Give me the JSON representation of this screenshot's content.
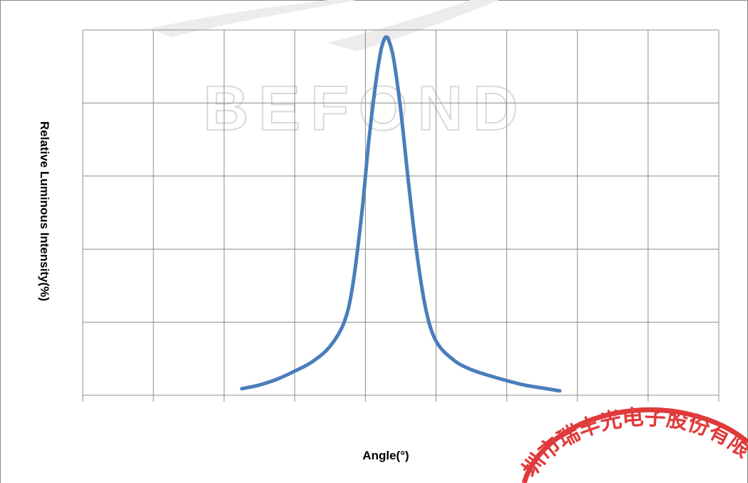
{
  "chart_data": {
    "type": "line",
    "title": "",
    "xlabel": "Angle(°)",
    "ylabel": "Relative Luminous Intensity(%)",
    "grid": true,
    "x_tick_labels": [],
    "y_tick_labels": [],
    "xlim": [
      0,
      9
    ],
    "ylim": [
      0,
      5
    ],
    "series": [
      {
        "color": "#4a7ebb",
        "points": [
          [
            2.25,
            0.09
          ],
          [
            2.5,
            0.14
          ],
          [
            2.75,
            0.22
          ],
          [
            3.0,
            0.33
          ],
          [
            3.25,
            0.46
          ],
          [
            3.5,
            0.67
          ],
          [
            3.7,
            1.0
          ],
          [
            3.82,
            1.5
          ],
          [
            3.95,
            2.5
          ],
          [
            4.05,
            3.5
          ],
          [
            4.15,
            4.3
          ],
          [
            4.22,
            4.72
          ],
          [
            4.27,
            4.88
          ],
          [
            4.3,
            4.9
          ],
          [
            4.33,
            4.86
          ],
          [
            4.4,
            4.6
          ],
          [
            4.5,
            3.9
          ],
          [
            4.6,
            3.0
          ],
          [
            4.72,
            2.0
          ],
          [
            4.85,
            1.2
          ],
          [
            5.0,
            0.74
          ],
          [
            5.25,
            0.48
          ],
          [
            5.5,
            0.35
          ],
          [
            5.75,
            0.27
          ],
          [
            6.0,
            0.2
          ],
          [
            6.25,
            0.14
          ],
          [
            6.5,
            0.1
          ],
          [
            6.75,
            0.06
          ]
        ]
      }
    ]
  },
  "watermark": {
    "text": "BEFOND"
  },
  "stamp": {
    "text": "圳市瑞丰光电子股份有限公",
    "color": "#e03a3a"
  }
}
